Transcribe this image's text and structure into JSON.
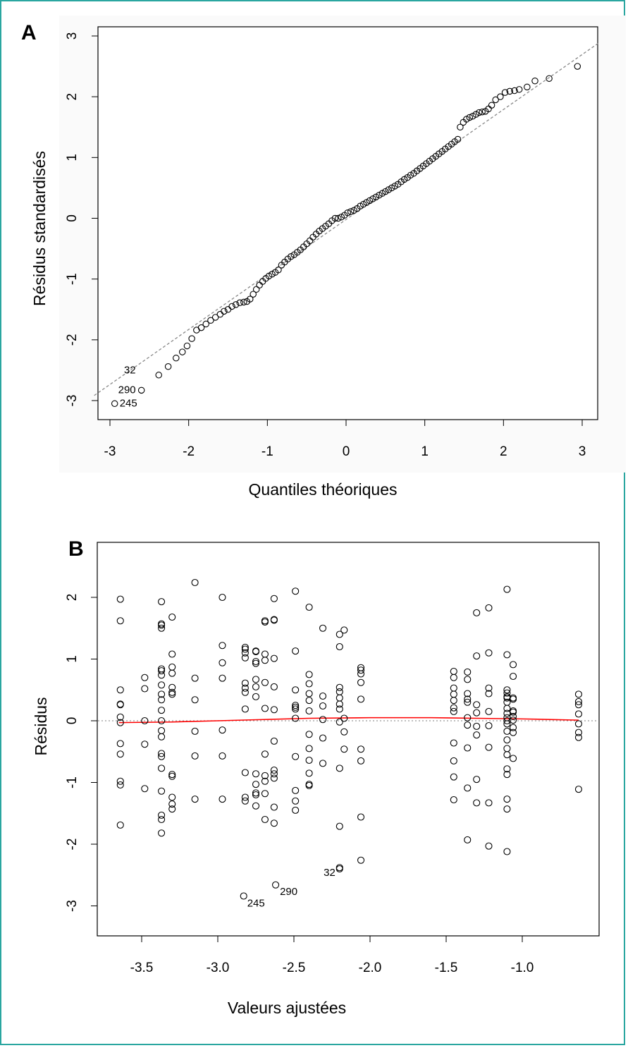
{
  "chart_data": [
    {
      "panel": "A",
      "type": "scatter",
      "xlabel": "Quantiles théoriques",
      "ylabel": "Résidus standardisés",
      "xlim": [
        -3.2,
        3.2
      ],
      "ylim": [
        -3.3,
        3.3
      ],
      "xticks": [
        -3,
        -2,
        -1,
        0,
        1,
        2,
        3
      ],
      "yticks": [
        -3,
        -2,
        -1,
        0,
        1,
        2,
        3
      ],
      "reference_line": {
        "slope": 0.905,
        "intercept": -0.02,
        "style": "dashed",
        "color": "#888888"
      },
      "series": [
        {
          "points": [
            [
              -2.94,
              -3.05
            ],
            [
              -2.6,
              -2.83
            ],
            [
              -2.38,
              -2.58
            ],
            [
              -2.26,
              -2.44
            ],
            [
              -2.16,
              -2.3
            ],
            [
              -2.08,
              -2.2
            ],
            [
              -2.02,
              -2.1
            ],
            [
              -1.96,
              -1.98
            ],
            [
              -1.9,
              -1.84
            ],
            [
              -1.84,
              -1.8
            ],
            [
              -1.78,
              -1.74
            ],
            [
              -1.72,
              -1.68
            ],
            [
              -1.66,
              -1.63
            ],
            [
              -1.6,
              -1.58
            ],
            [
              -1.55,
              -1.53
            ],
            [
              -1.5,
              -1.5
            ],
            [
              -1.45,
              -1.45
            ],
            [
              -1.4,
              -1.42
            ],
            [
              -1.35,
              -1.39
            ],
            [
              -1.3,
              -1.38
            ],
            [
              -1.26,
              -1.37
            ],
            [
              -1.22,
              -1.33
            ],
            [
              -1.18,
              -1.25
            ],
            [
              -1.14,
              -1.17
            ],
            [
              -1.1,
              -1.1
            ],
            [
              -1.06,
              -1.04
            ],
            [
              -1.02,
              -0.99
            ],
            [
              -0.98,
              -0.95
            ],
            [
              -0.94,
              -0.92
            ],
            [
              -0.9,
              -0.89
            ],
            [
              -0.86,
              -0.85
            ],
            [
              -0.82,
              -0.77
            ],
            [
              -0.78,
              -0.72
            ],
            [
              -0.74,
              -0.67
            ],
            [
              -0.7,
              -0.63
            ],
            [
              -0.66,
              -0.6
            ],
            [
              -0.62,
              -0.56
            ],
            [
              -0.58,
              -0.52
            ],
            [
              -0.54,
              -0.47
            ],
            [
              -0.5,
              -0.42
            ],
            [
              -0.46,
              -0.37
            ],
            [
              -0.42,
              -0.31
            ],
            [
              -0.38,
              -0.26
            ],
            [
              -0.34,
              -0.21
            ],
            [
              -0.3,
              -0.17
            ],
            [
              -0.26,
              -0.13
            ],
            [
              -0.22,
              -0.09
            ],
            [
              -0.18,
              -0.04
            ],
            [
              -0.14,
              0.0
            ],
            [
              -0.1,
              0.0
            ],
            [
              -0.06,
              0.02
            ],
            [
              -0.02,
              0.05
            ],
            [
              0.02,
              0.09
            ],
            [
              0.06,
              0.11
            ],
            [
              0.1,
              0.13
            ],
            [
              0.14,
              0.16
            ],
            [
              0.18,
              0.2
            ],
            [
              0.22,
              0.23
            ],
            [
              0.26,
              0.26
            ],
            [
              0.3,
              0.29
            ],
            [
              0.34,
              0.32
            ],
            [
              0.38,
              0.35
            ],
            [
              0.42,
              0.38
            ],
            [
              0.46,
              0.41
            ],
            [
              0.5,
              0.44
            ],
            [
              0.54,
              0.47
            ],
            [
              0.58,
              0.5
            ],
            [
              0.62,
              0.53
            ],
            [
              0.66,
              0.56
            ],
            [
              0.7,
              0.6
            ],
            [
              0.74,
              0.64
            ],
            [
              0.78,
              0.67
            ],
            [
              0.82,
              0.71
            ],
            [
              0.86,
              0.74
            ],
            [
              0.9,
              0.78
            ],
            [
              0.94,
              0.82
            ],
            [
              0.98,
              0.86
            ],
            [
              1.02,
              0.9
            ],
            [
              1.06,
              0.94
            ],
            [
              1.1,
              0.98
            ],
            [
              1.14,
              1.02
            ],
            [
              1.18,
              1.06
            ],
            [
              1.22,
              1.1
            ],
            [
              1.26,
              1.14
            ],
            [
              1.3,
              1.18
            ],
            [
              1.34,
              1.22
            ],
            [
              1.38,
              1.26
            ],
            [
              1.42,
              1.3
            ],
            [
              1.45,
              1.5
            ],
            [
              1.49,
              1.58
            ],
            [
              1.53,
              1.63
            ],
            [
              1.57,
              1.66
            ],
            [
              1.61,
              1.68
            ],
            [
              1.65,
              1.71
            ],
            [
              1.69,
              1.74
            ],
            [
              1.73,
              1.75
            ],
            [
              1.77,
              1.76
            ],
            [
              1.81,
              1.8
            ],
            [
              1.85,
              1.86
            ],
            [
              1.9,
              1.95
            ],
            [
              1.96,
              2.0
            ],
            [
              2.02,
              2.07
            ],
            [
              2.08,
              2.09
            ],
            [
              2.14,
              2.1
            ],
            [
              2.2,
              2.12
            ],
            [
              2.3,
              2.16
            ],
            [
              2.4,
              2.26
            ],
            [
              2.58,
              2.3
            ],
            [
              2.94,
              2.5
            ]
          ]
        }
      ],
      "annotations": [
        {
          "label": "32",
          "x": -2.6,
          "y": -2.6
        },
        {
          "label": "290",
          "x": -2.6,
          "y": -2.83
        },
        {
          "label": "245",
          "x": -2.94,
          "y": -3.05
        }
      ]
    },
    {
      "panel": "B",
      "type": "scatter",
      "xlabel": "Valeurs ajustées",
      "ylabel": "Résidus",
      "xlim": [
        -3.72,
        -0.57
      ],
      "ylim": [
        -3.5,
        2.5
      ],
      "xticks": [
        -3.5,
        -3.0,
        -2.5,
        -2.0,
        -1.5,
        -1.0
      ],
      "xtick_labels": [
        "-3.5",
        "-3.0",
        "-2.5",
        "-2.0",
        "-1.5",
        "-1.0"
      ],
      "yticks": [
        -3,
        -2,
        -1,
        0,
        1,
        2
      ],
      "reference_line": {
        "y": 0,
        "style": "dotted",
        "color": "#999999"
      },
      "smooth_line": {
        "color": "#ff0000",
        "points": [
          [
            -3.65,
            -0.03
          ],
          [
            -3.3,
            -0.02
          ],
          [
            -3.0,
            0.0
          ],
          [
            -2.7,
            0.02
          ],
          [
            -2.4,
            0.04
          ],
          [
            -2.0,
            0.05
          ],
          [
            -1.6,
            0.05
          ],
          [
            -1.3,
            0.04
          ],
          [
            -1.0,
            0.03
          ],
          [
            -0.63,
            0.01
          ]
        ]
      },
      "series": [
        {
          "columns": [
            {
              "x": -3.64,
              "y": [
                1.97,
                1.62,
                0.5,
                0.27,
                0.26,
                0.06,
                -0.03,
                -0.37,
                -0.54,
                -0.98,
                -1.04,
                -1.69
              ]
            },
            {
              "x": -3.48,
              "y": [
                0.7,
                0.52,
                0.0,
                -0.38,
                -1.1
              ]
            },
            {
              "x": -3.37,
              "y": [
                1.93,
                1.57,
                1.55,
                1.5,
                0.84,
                0.81,
                0.74,
                0.58,
                0.43,
                0.34,
                0.17,
                0.0,
                -0.16,
                -0.26,
                -0.53,
                -0.58,
                -0.77,
                -1.14,
                -1.53,
                -1.6,
                -1.82
              ]
            },
            {
              "x": -3.3,
              "y": [
                1.68,
                1.08,
                0.87,
                0.77,
                0.54,
                0.46,
                0.43,
                -0.87,
                -0.9,
                -1.24,
                -1.35,
                -1.43
              ]
            },
            {
              "x": -3.15,
              "y": [
                2.24,
                0.69,
                0.34,
                -0.17,
                -0.57,
                -1.27
              ]
            },
            {
              "x": -2.97,
              "y": [
                2.0,
                1.22,
                0.94,
                0.69,
                -0.15,
                -0.57,
                -1.27
              ]
            },
            {
              "x": -2.82,
              "y": [
                1.19,
                1.16,
                1.1,
                1.02,
                0.61,
                0.53,
                0.46,
                0.19,
                -0.84,
                -1.24,
                -1.3
              ]
            },
            {
              "x": -2.75,
              "y": [
                1.13,
                1.12,
                0.96,
                0.93,
                0.67,
                0.55,
                0.39,
                -0.86,
                -1.03,
                -1.17,
                -1.2,
                -1.38
              ]
            },
            {
              "x": -2.69,
              "y": [
                1.62,
                1.6,
                1.08,
                0.98,
                0.62,
                0.2,
                -0.54,
                -0.89,
                -0.98,
                -1.18,
                -1.6
              ]
            },
            {
              "x": -2.63,
              "y": [
                1.98,
                1.64,
                1.63,
                1.01,
                0.55,
                0.18,
                -0.33,
                -0.8,
                -0.86,
                -0.93,
                -1.4,
                -1.66
              ]
            },
            {
              "x": -2.49,
              "y": [
                2.1,
                1.13,
                0.5,
                0.25,
                0.22,
                0.19,
                0.04,
                -0.58,
                -1.13,
                -1.3,
                -1.45
              ]
            },
            {
              "x": -2.4,
              "y": [
                1.84,
                0.75,
                0.6,
                0.44,
                0.33,
                0.16,
                -0.22,
                -0.45,
                -0.64,
                -0.85,
                -1.03,
                -1.05
              ]
            },
            {
              "x": -2.31,
              "y": [
                1.5,
                0.4,
                0.24,
                0.02,
                -0.28,
                -0.69
              ]
            },
            {
              "x": -2.2,
              "y": [
                1.4,
                1.2,
                0.54,
                0.47,
                0.37,
                0.27,
                0.19,
                -0.02,
                -0.77,
                -1.71,
                -2.38
              ]
            },
            {
              "x": -2.17,
              "y": [
                1.47,
                0.04,
                -0.18,
                -0.46
              ]
            },
            {
              "x": -2.06,
              "y": [
                0.86,
                0.82,
                0.76,
                0.62,
                0.35,
                -0.46,
                -0.65,
                -1.56,
                -2.26
              ]
            },
            {
              "x": -1.45,
              "y": [
                0.8,
                0.7,
                0.53,
                0.43,
                0.33,
                0.21,
                0.15,
                -0.36,
                -0.65,
                -0.91,
                -1.28
              ]
            },
            {
              "x": -1.36,
              "y": [
                0.79,
                0.67,
                0.44,
                0.35,
                0.3,
                0.05,
                -0.07,
                -0.44,
                -1.09,
                -1.93
              ]
            },
            {
              "x": -1.3,
              "y": [
                1.75,
                1.05,
                0.26,
                0.13,
                -0.09,
                -0.23,
                -0.95,
                -1.33
              ]
            },
            {
              "x": -1.22,
              "y": [
                1.83,
                1.1,
                0.53,
                0.44,
                0.15,
                -0.08,
                -0.43,
                -1.33,
                -2.03
              ]
            },
            {
              "x": -1.1,
              "y": [
                2.13,
                1.07,
                0.5,
                0.45,
                0.39,
                0.37,
                0.3,
                0.2,
                0.12,
                0.05,
                0.0,
                -0.05,
                -0.17,
                -0.31,
                -0.45,
                -0.55,
                -0.78,
                -0.87,
                -1.27,
                -1.43,
                -2.12
              ]
            },
            {
              "x": -1.06,
              "y": [
                0.91,
                0.72,
                0.37,
                0.35,
                0.16,
                0.14,
                0.07,
                0.01,
                -0.11,
                -0.19,
                -0.61
              ]
            },
            {
              "x": -0.63,
              "y": [
                0.43,
                0.31,
                0.26,
                0.11,
                -0.05,
                -0.19,
                -0.27,
                -1.11
              ]
            }
          ],
          "extra_points": [
            [
              -2.83,
              -2.84
            ],
            [
              -2.62,
              -2.66
            ],
            [
              -2.2,
              -2.4
            ]
          ]
        }
      ],
      "annotations": [
        {
          "label": "245",
          "x": -2.83,
          "y": -2.84
        },
        {
          "label": "290",
          "x": -2.62,
          "y": -2.66
        },
        {
          "label": "32",
          "x": -2.2,
          "y": -2.4
        }
      ]
    }
  ]
}
